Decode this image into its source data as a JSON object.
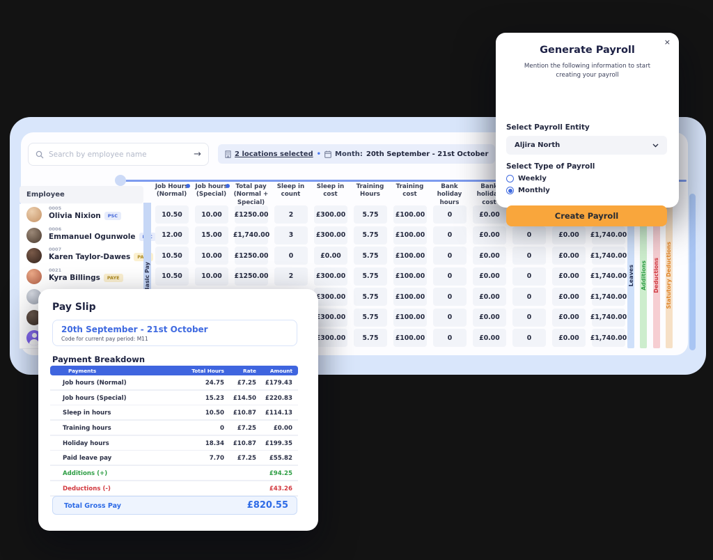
{
  "colors": {
    "background": "#131313",
    "window_frame": "#d9e6fb",
    "accent_blue": "#3f65df",
    "accent_orange": "#f9a63c",
    "positive_green": "#2f9e45",
    "negative_red": "#d23a40"
  },
  "toolbar": {
    "search_placeholder": "Search by employee name",
    "search_arrow": "→",
    "locations_text": "2 locations selected",
    "separator_dot": "•",
    "month_label": "Month:",
    "month_value": "20th September - 21st October"
  },
  "table": {
    "employee_header": "Employee",
    "group_strip": "Basic Pay",
    "columns": [
      {
        "label": "Job Hours (Normal)",
        "info": true
      },
      {
        "label": "Job hours (Special)",
        "info": true
      },
      {
        "label": "Total pay (Normal + Special)",
        "info": false
      },
      {
        "label": "Sleep in count",
        "info": false
      },
      {
        "label": "Sleep in cost",
        "info": false
      },
      {
        "label": "Training Hours",
        "info": false
      },
      {
        "label": "Training cost",
        "info": false
      },
      {
        "label": "Bank holiday hours",
        "info": false
      },
      {
        "label": "Bank holiday cost",
        "info": false
      },
      {
        "label": "",
        "info": false
      },
      {
        "label": "",
        "info": false
      },
      {
        "label": "",
        "info": false
      }
    ],
    "employees": [
      {
        "id": "0005",
        "name": "Olivia Nixion",
        "badge": "PSC",
        "avatar": [
          "#eccfae",
          "#c59265"
        ],
        "person_glyph": false
      },
      {
        "id": "0006",
        "name": "Emmanuel Ogunwole",
        "badge": "PSC",
        "avatar": [
          "#9b8877",
          "#4a3a2e"
        ],
        "person_glyph": false
      },
      {
        "id": "0007",
        "name": "Karen Taylor-Dawes",
        "badge": "PAYE",
        "avatar": [
          "#7a5a49",
          "#33231c"
        ],
        "person_glyph": false
      },
      {
        "id": "0021",
        "name": "Kyra Billings",
        "badge": "PAYE",
        "avatar": [
          "#eaa987",
          "#b05f47"
        ],
        "person_glyph": false
      },
      {
        "id": "",
        "name": "",
        "badge": "",
        "avatar": [
          "#d8dce4",
          "#9aa1ad"
        ],
        "person_glyph": false
      },
      {
        "id": "",
        "name": "",
        "badge": "",
        "avatar": [
          "#6d5b4e",
          "#3a2d24"
        ],
        "person_glyph": false
      },
      {
        "id": "",
        "name": "",
        "badge": "",
        "avatar": [
          "#8f75f5",
          "#6a49e8"
        ],
        "person_glyph": true
      }
    ],
    "badge_styles": {
      "PSC": {
        "bg": "#e7ecfb",
        "color": "#4064d8"
      },
      "PAYE": {
        "bg": "#fbf0d0",
        "color": "#ad8a22"
      }
    },
    "rows": [
      {
        "cells": [
          "10.50",
          "10.00",
          "£1250.00",
          "2",
          "£300.00",
          "5.75",
          "£100.00",
          "0",
          "£0.00",
          "0",
          "£0.00",
          "£1,740.00"
        ]
      },
      {
        "cells": [
          "12.00",
          "15.00",
          "£1,740.00",
          "3",
          "£300.00",
          "5.75",
          "£100.00",
          "0",
          "£0.00",
          "0",
          "£0.00",
          "£1,740.00"
        ]
      },
      {
        "cells": [
          "10.50",
          "10.00",
          "£1250.00",
          "0",
          "£0.00",
          "5.75",
          "£100.00",
          "0",
          "£0.00",
          "0",
          "£0.00",
          "£1,740.00"
        ]
      },
      {
        "cells": [
          "10.50",
          "10.00",
          "£1250.00",
          "2",
          "£300.00",
          "5.75",
          "£100.00",
          "0",
          "£0.00",
          "0",
          "£0.00",
          "£1,740.00"
        ]
      },
      {
        "cells": [
          "",
          "",
          "",
          "",
          "£300.00",
          "5.75",
          "£100.00",
          "0",
          "£0.00",
          "0",
          "£0.00",
          "£1,740.00"
        ]
      },
      {
        "cells": [
          "",
          "",
          "",
          "",
          "£300.00",
          "5.75",
          "£100.00",
          "0",
          "£0.00",
          "0",
          "£0.00",
          "£1,740.00"
        ]
      },
      {
        "cells": [
          "",
          "",
          "",
          "",
          "£300.00",
          "5.75",
          "£100.00",
          "0",
          "£0.00",
          "0",
          "£0.00",
          "£1,740.00"
        ]
      }
    ],
    "category_strips": [
      {
        "label": "Leaves",
        "bg": "#cfe0fa",
        "color": "#1f2a4e"
      },
      {
        "label": "Additions",
        "bg": "#cdedcd",
        "color": "#2f9e45"
      },
      {
        "label": "Deductions",
        "bg": "#f6ced2",
        "color": "#d03a41"
      },
      {
        "label": "Statutory Deductions",
        "bg": "#f6e0c6",
        "color": "#e0862c"
      }
    ]
  },
  "payslip": {
    "title": "Pay Slip",
    "period_title": "20th September - 21st October",
    "period_code": "Code for current pay period: M11",
    "breakdown_title": "Payment Breakdown",
    "header": {
      "payments": "Payments",
      "total_hours": "Total Hours",
      "rate": "Rate",
      "amount": "Amount"
    },
    "rows": [
      {
        "label": "Job hours (Normal)",
        "hours": "24.75",
        "rate": "£7.25",
        "amount": "£179.43",
        "tone": "normal"
      },
      {
        "label": "Job hours (Special)",
        "hours": "15.23",
        "rate": "£14.50",
        "amount": "£220.83",
        "tone": "normal"
      },
      {
        "label": "Sleep in hours",
        "hours": "10.50",
        "rate": "£10.87",
        "amount": "£114.13",
        "tone": "normal"
      },
      {
        "label": "Training hours",
        "hours": "0",
        "rate": "£7.25",
        "amount": "£0.00",
        "tone": "normal"
      },
      {
        "label": "Holiday hours",
        "hours": "18.34",
        "rate": "£10.87",
        "amount": "£199.35",
        "tone": "normal"
      },
      {
        "label": "Paid leave pay",
        "hours": "7.70",
        "rate": "£7.25",
        "amount": "£55.82",
        "tone": "normal"
      },
      {
        "label": "Additions (+)",
        "hours": "",
        "rate": "",
        "amount": "£94.25",
        "tone": "positive"
      },
      {
        "label": "Deductions (-)",
        "hours": "",
        "rate": "",
        "amount": "£43.26",
        "tone": "negative"
      }
    ],
    "total_label": "Total Gross Pay",
    "total_value": "£820.55"
  },
  "generate": {
    "close_glyph": "×",
    "title": "Generate Payroll",
    "subtitle": "Mention the following information to start creating your payroll",
    "entity_label": "Select Payroll Entity",
    "entity_value": "Aljira North",
    "type_label": "Select Type of Payroll",
    "options": [
      {
        "label": "Weekly",
        "selected": false
      },
      {
        "label": "Monthly",
        "selected": true
      }
    ],
    "submit_label": "Create Payroll"
  }
}
